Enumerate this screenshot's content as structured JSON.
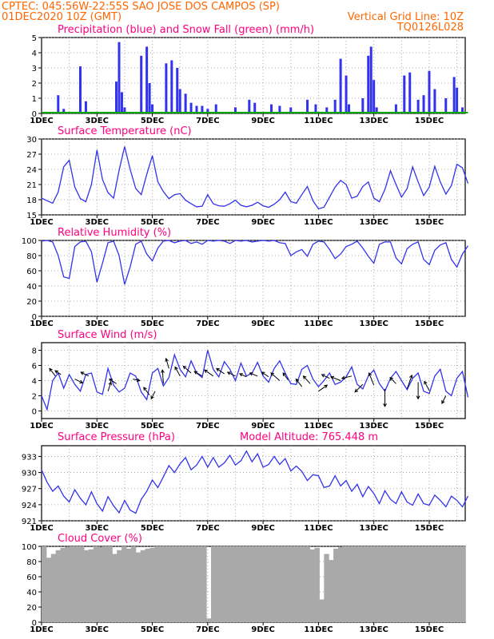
{
  "header": {
    "line1": "CPTEC:   045:56W-22:55S  SAO JOSE DOS CAMPOS (SP)",
    "line2": "01DEC2020 10Z (GMT)",
    "right1": "Vertical Grid Line: 10Z",
    "right2": "TQ0126L028"
  },
  "colors": {
    "line": "#3333ee",
    "snow": "#00aa00",
    "title": "#ff0080",
    "header": "#ff6600",
    "cloud": "#a9a9a9"
  },
  "chart_data": [
    {
      "type": "bar",
      "title": "Precipitation (blue) and Snow Fall (green) (mm/h)",
      "xlabels": [
        "1DEC",
        "3DEC",
        "5DEC",
        "7DEC",
        "9DEC",
        "11DEC",
        "13DEC",
        "15DEC"
      ],
      "ylim": [
        0,
        5
      ],
      "yticks": [
        0,
        1,
        2,
        3,
        4,
        5
      ],
      "grid": true,
      "series": [
        {
          "name": "Precipitation",
          "values": [
            [
              1.6,
              1.2
            ],
            [
              1.8,
              0.3
            ],
            [
              2.4,
              3.1
            ],
            [
              2.6,
              0.8
            ],
            [
              3.7,
              2.1
            ],
            [
              3.8,
              4.7
            ],
            [
              3.9,
              1.4
            ],
            [
              4.0,
              0.4
            ],
            [
              4.6,
              3.8
            ],
            [
              4.8,
              4.4
            ],
            [
              4.9,
              2.0
            ],
            [
              5.0,
              0.6
            ],
            [
              5.5,
              3.3
            ],
            [
              5.7,
              3.5
            ],
            [
              5.9,
              3.0
            ],
            [
              6.0,
              1.6
            ],
            [
              6.2,
              1.3
            ],
            [
              6.4,
              0.7
            ],
            [
              6.6,
              0.5
            ],
            [
              6.8,
              0.5
            ],
            [
              7.0,
              0.3
            ],
            [
              7.3,
              0.6
            ],
            [
              8.0,
              0.4
            ],
            [
              8.5,
              0.9
            ],
            [
              8.7,
              0.7
            ],
            [
              9.3,
              0.6
            ],
            [
              9.6,
              0.5
            ],
            [
              10.0,
              0.4
            ],
            [
              10.6,
              0.9
            ],
            [
              10.9,
              0.6
            ],
            [
              11.3,
              0.4
            ],
            [
              11.6,
              0.9
            ],
            [
              11.8,
              3.6
            ],
            [
              12.0,
              2.5
            ],
            [
              12.1,
              0.6
            ],
            [
              12.6,
              1.0
            ],
            [
              12.8,
              3.8
            ],
            [
              12.9,
              4.4
            ],
            [
              13.0,
              2.2
            ],
            [
              13.1,
              0.4
            ],
            [
              13.8,
              0.6
            ],
            [
              14.1,
              2.5
            ],
            [
              14.3,
              2.7
            ],
            [
              14.6,
              0.9
            ],
            [
              14.8,
              1.2
            ],
            [
              15.0,
              2.8
            ],
            [
              15.2,
              1.6
            ],
            [
              15.6,
              1.0
            ],
            [
              15.9,
              2.4
            ],
            [
              16.0,
              1.7
            ],
            [
              16.2,
              0.4
            ]
          ]
        },
        {
          "name": "Snow Fall",
          "values": [
            [
              1.0,
              0
            ],
            [
              16.4,
              0
            ]
          ]
        }
      ]
    },
    {
      "type": "line",
      "title": "Surface Temperature (nC)",
      "xlabels": [
        "1DEC",
        "3DEC",
        "5DEC",
        "7DEC",
        "9DEC",
        "11DEC",
        "13DEC",
        "15DEC"
      ],
      "ylim": [
        15,
        30
      ],
      "yticks": [
        15,
        18,
        21,
        24,
        27,
        30
      ],
      "grid": true,
      "x": [
        1.0,
        1.2,
        1.4,
        1.6,
        1.8,
        2.0,
        2.2,
        2.4,
        2.6,
        2.8,
        3.0,
        3.2,
        3.4,
        3.6,
        3.8,
        4.0,
        4.2,
        4.4,
        4.6,
        4.8,
        5.0,
        5.2,
        5.4,
        5.6,
        5.8,
        6.0,
        6.2,
        6.4,
        6.6,
        6.8,
        7.0,
        7.2,
        7.4,
        7.6,
        7.8,
        8.0,
        8.2,
        8.4,
        8.6,
        8.8,
        9.0,
        9.2,
        9.4,
        9.6,
        9.8,
        10.0,
        10.2,
        10.4,
        10.6,
        10.8,
        11.0,
        11.2,
        11.4,
        11.6,
        11.8,
        12.0,
        12.2,
        12.4,
        12.6,
        12.8,
        13.0,
        13.2,
        13.4,
        13.6,
        13.8,
        14.0,
        14.2,
        14.4,
        14.6,
        14.8,
        15.0,
        15.2,
        15.4,
        15.6,
        15.8,
        16.0,
        16.2,
        16.4
      ],
      "values": [
        18.3,
        17.8,
        17.3,
        19.5,
        24.5,
        25.8,
        20.5,
        18.2,
        17.6,
        21.0,
        27.8,
        22.0,
        19.4,
        18.3,
        23.8,
        28.5,
        24.0,
        20.2,
        19.0,
        23.0,
        26.7,
        21.5,
        19.6,
        18.2,
        19.0,
        19.2,
        17.9,
        17.2,
        16.6,
        16.7,
        19.0,
        17.2,
        16.8,
        16.7,
        17.2,
        17.9,
        16.9,
        16.6,
        16.9,
        17.5,
        16.8,
        16.5,
        17.1,
        18.0,
        19.5,
        17.6,
        17.3,
        19.0,
        20.6,
        17.8,
        16.2,
        16.5,
        18.5,
        20.5,
        21.8,
        21.0,
        18.3,
        18.7,
        20.6,
        21.5,
        18.3,
        17.6,
        20.0,
        23.7,
        21.0,
        18.5,
        20.2,
        24.5,
        21.5,
        18.8,
        20.5,
        24.6,
        21.5,
        19.1,
        20.8,
        25.0,
        24.3,
        21.2
      ]
    },
    {
      "type": "line",
      "title": "Relative Humidity (%)",
      "xlabels": [
        "1DEC",
        "3DEC",
        "5DEC",
        "7DEC",
        "9DEC",
        "11DEC",
        "13DEC",
        "15DEC"
      ],
      "ylim": [
        0,
        100
      ],
      "yticks": [
        0,
        20,
        40,
        60,
        80,
        100
      ],
      "grid": true,
      "x": [
        1.0,
        1.2,
        1.4,
        1.6,
        1.8,
        2.0,
        2.2,
        2.4,
        2.6,
        2.8,
        3.0,
        3.2,
        3.4,
        3.6,
        3.8,
        4.0,
        4.2,
        4.4,
        4.6,
        4.8,
        5.0,
        5.2,
        5.4,
        5.6,
        5.8,
        6.0,
        6.2,
        6.4,
        6.6,
        6.8,
        7.0,
        7.2,
        7.4,
        7.6,
        7.8,
        8.0,
        8.2,
        8.4,
        8.6,
        8.8,
        9.0,
        9.2,
        9.4,
        9.6,
        9.8,
        10.0,
        10.2,
        10.4,
        10.6,
        10.8,
        11.0,
        11.2,
        11.4,
        11.6,
        11.8,
        12.0,
        12.2,
        12.4,
        12.6,
        12.8,
        13.0,
        13.2,
        13.4,
        13.6,
        13.8,
        14.0,
        14.2,
        14.4,
        14.6,
        14.8,
        15.0,
        15.2,
        15.4,
        15.6,
        15.8,
        16.0,
        16.2,
        16.4
      ],
      "values": [
        99,
        100,
        98,
        80,
        52,
        50,
        92,
        98,
        99,
        85,
        45,
        70,
        97,
        99,
        80,
        42,
        65,
        95,
        99,
        82,
        73,
        90,
        99,
        100,
        97,
        99,
        100,
        96,
        98,
        95,
        100,
        99,
        100,
        99,
        96,
        100,
        99,
        100,
        98,
        99,
        100,
        99,
        100,
        97,
        96,
        80,
        85,
        88,
        79,
        95,
        99,
        98,
        88,
        76,
        82,
        92,
        95,
        99,
        90,
        79,
        70,
        95,
        98,
        98,
        77,
        69,
        89,
        95,
        98,
        75,
        68,
        87,
        94,
        97,
        75,
        65,
        82,
        93
      ]
    },
    {
      "type": "line",
      "title": "Surface Wind (m/s)",
      "xlabels": [
        "1DEC",
        "3DEC",
        "5DEC",
        "7DEC",
        "9DEC",
        "11DEC",
        "13DEC",
        "15DEC"
      ],
      "ylim": [
        -1,
        9
      ],
      "yticks": [
        0,
        2,
        4,
        6,
        8
      ],
      "grid": true,
      "x": [
        1.0,
        1.2,
        1.4,
        1.6,
        1.8,
        2.0,
        2.2,
        2.4,
        2.6,
        2.8,
        3.0,
        3.2,
        3.4,
        3.6,
        3.8,
        4.0,
        4.2,
        4.4,
        4.6,
        4.8,
        5.0,
        5.2,
        5.4,
        5.6,
        5.8,
        6.0,
        6.2,
        6.4,
        6.6,
        6.8,
        7.0,
        7.2,
        7.4,
        7.6,
        7.8,
        8.0,
        8.2,
        8.4,
        8.6,
        8.8,
        9.0,
        9.2,
        9.4,
        9.6,
        9.8,
        10.0,
        10.2,
        10.4,
        10.6,
        10.8,
        11.0,
        11.2,
        11.4,
        11.6,
        11.8,
        12.0,
        12.2,
        12.4,
        12.6,
        12.8,
        13.0,
        13.2,
        13.4,
        13.6,
        13.8,
        14.0,
        14.2,
        14.4,
        14.6,
        14.8,
        15.0,
        15.2,
        15.4,
        15.6,
        15.8,
        16.0,
        16.2,
        16.4
      ],
      "values": [
        2.0,
        0.2,
        4.0,
        5.0,
        3.0,
        4.8,
        3.5,
        2.6,
        4.8,
        5.0,
        2.5,
        2.2,
        5.6,
        3.4,
        2.5,
        3.0,
        5.0,
        4.6,
        2.5,
        1.5,
        5.0,
        5.6,
        3.3,
        4.4,
        7.4,
        5.5,
        4.5,
        6.6,
        5.0,
        4.4,
        8.0,
        5.5,
        4.5,
        6.5,
        5.5,
        4.0,
        6.3,
        4.6,
        5.0,
        6.4,
        4.6,
        3.8,
        5.6,
        6.6,
        5.0,
        3.6,
        3.5,
        5.5,
        6.0,
        4.2,
        3.2,
        4.0,
        5.0,
        3.5,
        3.8,
        4.5,
        5.8,
        3.5,
        2.9,
        4.6,
        5.4,
        3.6,
        2.6,
        4.3,
        5.2,
        4.0,
        2.8,
        4.3,
        5.0,
        2.6,
        2.3,
        4.6,
        5.5,
        2.6,
        2.0,
        4.3,
        5.2,
        1.8
      ],
      "arrows": [
        [
          1.5,
          4.6,
          -0.6,
          1.0
        ],
        [
          1.7,
          4.8,
          -0.6,
          0.5
        ],
        [
          2.2,
          4.2,
          0.8,
          -0.5
        ],
        [
          2.7,
          4.6,
          -0.8,
          0.5
        ],
        [
          3.4,
          2.6,
          0.3,
          1.2
        ],
        [
          3.7,
          3.6,
          -0.7,
          0.6
        ],
        [
          4.3,
          4.2,
          0.7,
          -0.2
        ],
        [
          4.9,
          2.1,
          -0.6,
          1.0
        ],
        [
          5.1,
          2.6,
          -0.4,
          -1.0
        ],
        [
          5.4,
          3.6,
          -0.1,
          1.8
        ],
        [
          5.6,
          5.6,
          -0.3,
          1.3
        ],
        [
          6.0,
          4.6,
          -0.5,
          1.2
        ],
        [
          6.4,
          5.0,
          -0.8,
          0.9
        ],
        [
          6.8,
          4.6,
          -0.8,
          0.6
        ],
        [
          7.2,
          4.6,
          -0.9,
          0.8
        ],
        [
          7.6,
          4.9,
          -0.8,
          0.7
        ],
        [
          8.0,
          4.6,
          -0.8,
          0.5
        ],
        [
          8.4,
          4.5,
          -0.7,
          0.4
        ],
        [
          8.8,
          4.6,
          -0.8,
          0.4
        ],
        [
          9.2,
          4.5,
          -0.7,
          0.6
        ],
        [
          9.6,
          4.0,
          -0.9,
          1.0
        ],
        [
          9.9,
          4.1,
          -0.5,
          0.9
        ],
        [
          10.4,
          3.2,
          -0.6,
          1.0
        ],
        [
          10.7,
          3.6,
          -0.7,
          1.0
        ],
        [
          11.0,
          2.6,
          0.9,
          0.8
        ],
        [
          11.4,
          4.3,
          -0.8,
          0.5
        ],
        [
          11.8,
          4.0,
          -1.0,
          0.5
        ],
        [
          12.2,
          4.6,
          -1.0,
          -0.3
        ],
        [
          12.6,
          3.5,
          -0.8,
          -1.0
        ],
        [
          13.0,
          3.4,
          -0.5,
          1.6
        ],
        [
          13.4,
          2.9,
          0.0,
          -2.3
        ],
        [
          13.8,
          3.6,
          -0.6,
          0.8
        ],
        [
          14.2,
          2.9,
          0.5,
          1.8
        ],
        [
          14.6,
          3.8,
          0.0,
          -2.2
        ],
        [
          15.0,
          2.7,
          -0.5,
          1.2
        ],
        [
          15.6,
          2.0,
          -0.4,
          -1.0
        ]
      ]
    },
    {
      "type": "line",
      "title": "Surface Pressure (hPa)",
      "annotation": "Model Altitude: 765.448  m",
      "xlabels": [
        "1DEC",
        "3DEC",
        "5DEC",
        "7DEC",
        "9DEC",
        "11DEC",
        "13DEC",
        "15DEC"
      ],
      "ylim": [
        921,
        935
      ],
      "yticks": [
        921,
        924,
        927,
        930,
        933
      ],
      "grid": true,
      "x": [
        1.0,
        1.2,
        1.4,
        1.6,
        1.8,
        2.0,
        2.2,
        2.4,
        2.6,
        2.8,
        3.0,
        3.2,
        3.4,
        3.6,
        3.8,
        4.0,
        4.2,
        4.4,
        4.6,
        4.8,
        5.0,
        5.2,
        5.4,
        5.6,
        5.8,
        6.0,
        6.2,
        6.4,
        6.6,
        6.8,
        7.0,
        7.2,
        7.4,
        7.6,
        7.8,
        8.0,
        8.2,
        8.4,
        8.6,
        8.8,
        9.0,
        9.2,
        9.4,
        9.6,
        9.8,
        10.0,
        10.2,
        10.4,
        10.6,
        10.8,
        11.0,
        11.2,
        11.4,
        11.6,
        11.8,
        12.0,
        12.2,
        12.4,
        12.6,
        12.8,
        13.0,
        13.2,
        13.4,
        13.6,
        13.8,
        14.0,
        14.2,
        14.4,
        14.6,
        14.8,
        15.0,
        15.2,
        15.4,
        15.6,
        15.8,
        16.0,
        16.2,
        16.4
      ],
      "values": [
        930.5,
        928.2,
        926.5,
        927.5,
        925.6,
        924.5,
        926.8,
        925.2,
        924.0,
        926.4,
        924.2,
        922.8,
        925.5,
        923.8,
        922.5,
        924.8,
        923.0,
        922.4,
        925.0,
        926.5,
        928.6,
        927.2,
        929.2,
        931.3,
        930.0,
        931.6,
        932.8,
        930.5,
        931.4,
        933.0,
        931.0,
        932.8,
        931.0,
        931.8,
        933.2,
        931.4,
        932.2,
        934.0,
        932.0,
        933.5,
        931.0,
        931.5,
        933.0,
        931.5,
        932.6,
        930.3,
        931.2,
        930.2,
        928.5,
        929.6,
        929.4,
        927.2,
        927.5,
        929.4,
        927.5,
        928.5,
        926.5,
        927.8,
        925.5,
        927.4,
        926.1,
        924.2,
        926.6,
        925.0,
        924.2,
        926.4,
        924.5,
        923.9,
        926.0,
        924.2,
        923.9,
        925.8,
        924.8,
        923.6,
        925.6,
        924.8,
        923.6,
        925.6
      ]
    },
    {
      "type": "bar",
      "title": "Cloud Cover (%)",
      "xlabels": [
        "1DEC",
        "3DEC",
        "5DEC",
        "7DEC",
        "9DEC",
        "11DEC",
        "13DEC",
        "15DEC"
      ],
      "ylim": [
        0,
        100
      ],
      "yticks": [
        0,
        20,
        40,
        60,
        80,
        100
      ],
      "grid": true,
      "values": [
        100,
        85,
        90,
        95,
        98,
        99,
        100,
        100,
        100,
        95,
        96,
        100,
        99,
        100,
        100,
        90,
        95,
        100,
        97,
        100,
        92,
        95,
        97,
        98,
        100,
        100,
        100,
        100,
        100,
        100,
        100,
        100,
        100,
        100,
        100,
        5,
        100,
        100,
        100,
        100,
        100,
        100,
        100,
        100,
        100,
        100,
        100,
        100,
        100,
        100,
        100,
        100,
        100,
        100,
        100,
        100,
        100,
        96,
        98,
        30,
        90,
        82,
        97,
        99,
        100,
        100,
        100,
        100,
        100,
        100,
        100,
        100,
        100,
        100,
        100,
        100,
        100,
        100,
        100,
        100,
        100,
        100,
        100,
        100,
        100,
        100,
        100,
        100,
        100,
        100
      ]
    }
  ]
}
